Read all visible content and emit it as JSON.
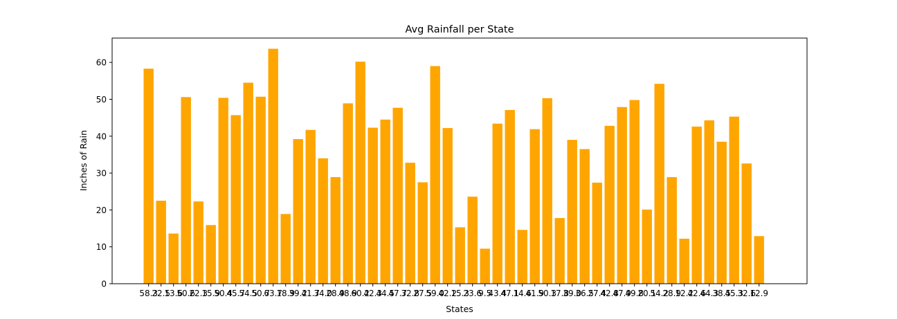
{
  "chart_data": {
    "type": "bar",
    "title": "Avg Rainfall per State",
    "xlabel": "States",
    "ylabel": "Inches of Rain",
    "ylim": [
      0,
      66.6
    ],
    "yticks": [
      0,
      10,
      20,
      30,
      40,
      50,
      60
    ],
    "grid": false,
    "bar_color": "#ffa500",
    "categories": [
      "58.3",
      "22.5",
      "13.6",
      "50.6",
      "22.3",
      "15.9",
      "50.4",
      "45.7",
      "54.5",
      "50.7",
      "63.7",
      "18.9",
      "39.2",
      "41.7",
      "34.0",
      "28.9",
      "48.9",
      "60.2",
      "42.3",
      "44.5",
      "47.7",
      "32.8",
      "27.5",
      "59.0",
      "42.2",
      "15.3",
      "23.6",
      "9.5",
      "43.4",
      "47.1",
      "14.6",
      "41.9",
      "50.3",
      "17.8",
      "39.0",
      "36.5",
      "27.4",
      "42.8",
      "47.9",
      "49.8",
      "20.1",
      "54.2",
      "28.9",
      "12.2",
      "42.6",
      "44.3",
      "38.5",
      "45.3",
      "32.6",
      "12.9"
    ],
    "values": [
      58.3,
      22.5,
      13.6,
      50.6,
      22.3,
      15.9,
      50.4,
      45.7,
      54.5,
      50.7,
      63.7,
      18.9,
      39.2,
      41.7,
      34.0,
      28.9,
      48.9,
      60.2,
      42.3,
      44.5,
      47.7,
      32.8,
      27.5,
      59.0,
      42.2,
      15.3,
      23.6,
      9.5,
      43.4,
      47.1,
      14.6,
      41.9,
      50.3,
      17.8,
      39.0,
      36.5,
      27.4,
      42.8,
      47.9,
      49.8,
      20.1,
      54.2,
      28.9,
      12.2,
      42.6,
      44.3,
      38.5,
      45.3,
      32.6,
      12.9
    ]
  }
}
